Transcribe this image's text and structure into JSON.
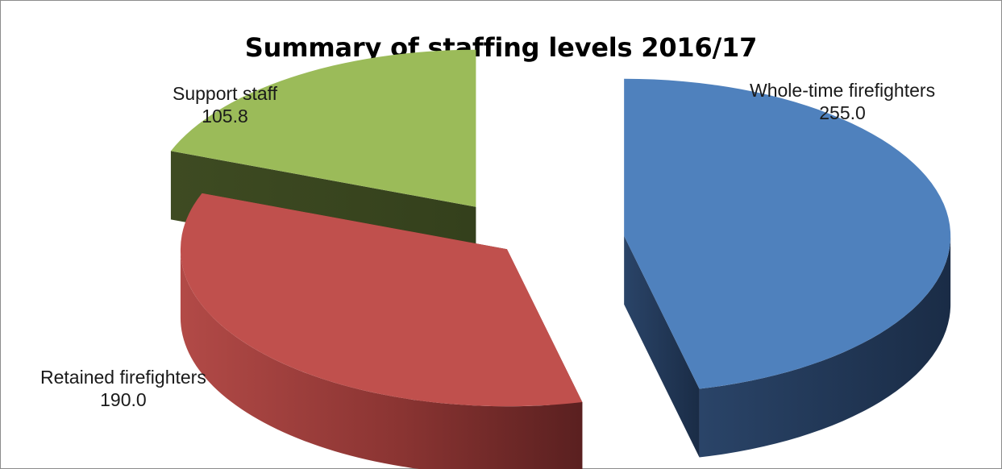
{
  "chart_data": {
    "type": "pie",
    "title": "Summary of staffing levels 2016/17",
    "categories": [
      "Whole-time firefighters",
      "Retained firefighters",
      "Support staff"
    ],
    "values": [
      255.0,
      190.0,
      105.8
    ],
    "value_labels": [
      "255.0",
      "190.0",
      "105.8"
    ],
    "colors": [
      "#4f81bd",
      "#c0504d",
      "#9bbb59"
    ],
    "style": "3d-exploded",
    "legend": "none"
  }
}
